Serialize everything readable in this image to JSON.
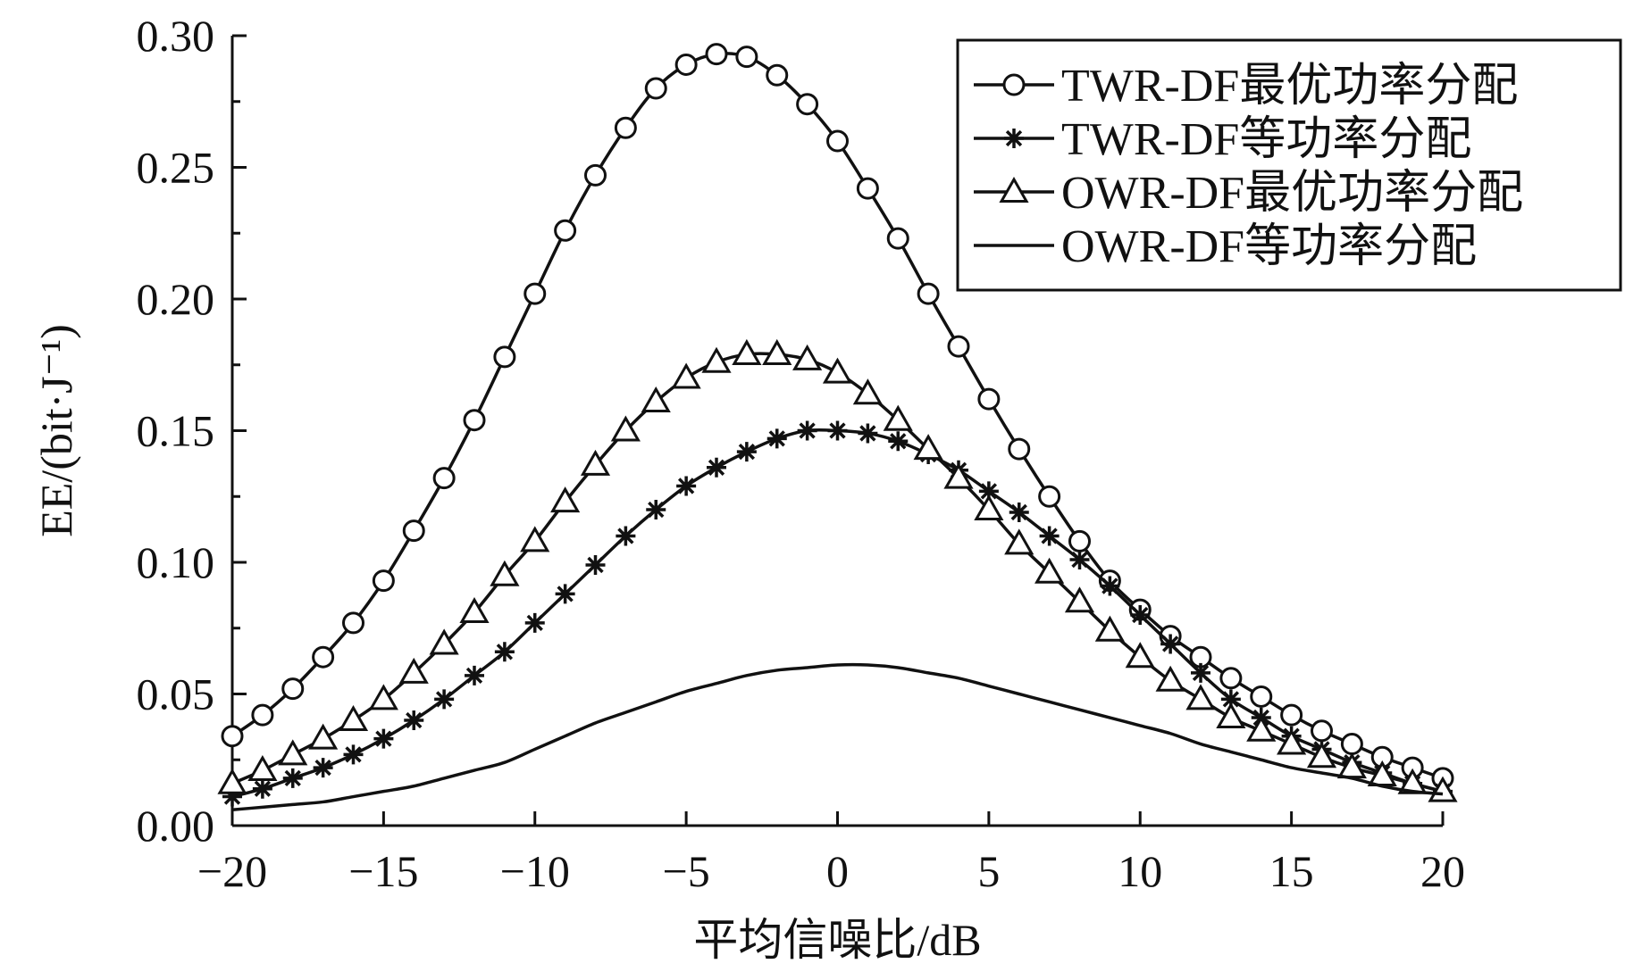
{
  "chart_data": {
    "type": "line",
    "xlabel": "平均信噪比/dB",
    "ylabel": "EE/(bit·J⁻¹)",
    "xlim": [
      -20,
      20
    ],
    "ylim": [
      0,
      0.3
    ],
    "x_ticks": [
      "−20",
      "−15",
      "−10",
      "−5",
      "0",
      "5",
      "10",
      "15",
      "20"
    ],
    "y_ticks": [
      "0.00",
      "0.05",
      "0.10",
      "0.15",
      "0.20",
      "0.25",
      "0.30"
    ],
    "grid": false,
    "legend_position": "top-right",
    "x": [
      -20,
      -19,
      -18,
      -17,
      -16,
      -15,
      -14,
      -13,
      -12,
      -11,
      -10,
      -9,
      -8,
      -7,
      -6,
      -5,
      -4,
      -3,
      -2,
      -1,
      0,
      1,
      2,
      3,
      4,
      5,
      6,
      7,
      8,
      9,
      10,
      11,
      12,
      13,
      14,
      15,
      16,
      17,
      18,
      19,
      20
    ],
    "series": [
      {
        "name": "TWR-DF最优功率分配",
        "marker": "circle",
        "values": [
          0.034,
          0.042,
          0.052,
          0.064,
          0.077,
          0.093,
          0.112,
          0.132,
          0.154,
          0.178,
          0.202,
          0.226,
          0.247,
          0.265,
          0.28,
          0.289,
          0.293,
          0.292,
          0.285,
          0.274,
          0.26,
          0.242,
          0.223,
          0.202,
          0.182,
          0.162,
          0.143,
          0.125,
          0.108,
          0.093,
          0.082,
          0.072,
          0.064,
          0.056,
          0.049,
          0.042,
          0.036,
          0.031,
          0.026,
          0.022,
          0.018
        ]
      },
      {
        "name": "TWR-DF等功率分配",
        "marker": "asterisk",
        "values": [
          0.011,
          0.014,
          0.018,
          0.022,
          0.027,
          0.033,
          0.04,
          0.048,
          0.057,
          0.066,
          0.077,
          0.088,
          0.099,
          0.11,
          0.12,
          0.129,
          0.136,
          0.142,
          0.147,
          0.15,
          0.15,
          0.149,
          0.146,
          0.141,
          0.135,
          0.127,
          0.119,
          0.11,
          0.101,
          0.091,
          0.08,
          0.069,
          0.058,
          0.048,
          0.041,
          0.034,
          0.029,
          0.024,
          0.02,
          0.016,
          0.013
        ]
      },
      {
        "name": "OWR-DF最优功率分配",
        "marker": "triangle",
        "values": [
          0.016,
          0.021,
          0.027,
          0.033,
          0.04,
          0.048,
          0.058,
          0.069,
          0.081,
          0.095,
          0.108,
          0.123,
          0.137,
          0.15,
          0.161,
          0.17,
          0.176,
          0.179,
          0.179,
          0.177,
          0.172,
          0.164,
          0.154,
          0.143,
          0.132,
          0.12,
          0.107,
          0.096,
          0.085,
          0.074,
          0.064,
          0.055,
          0.048,
          0.041,
          0.036,
          0.031,
          0.026,
          0.022,
          0.019,
          0.016,
          0.013
        ]
      },
      {
        "name": "OWR-DF等功率分配",
        "marker": "none",
        "values": [
          0.006,
          0.007,
          0.008,
          0.009,
          0.011,
          0.013,
          0.015,
          0.018,
          0.021,
          0.024,
          0.029,
          0.034,
          0.039,
          0.043,
          0.047,
          0.051,
          0.054,
          0.057,
          0.059,
          0.06,
          0.061,
          0.061,
          0.06,
          0.058,
          0.056,
          0.053,
          0.05,
          0.047,
          0.044,
          0.041,
          0.038,
          0.035,
          0.031,
          0.028,
          0.025,
          0.022,
          0.02,
          0.018,
          0.015,
          0.013,
          0.012
        ]
      }
    ]
  }
}
